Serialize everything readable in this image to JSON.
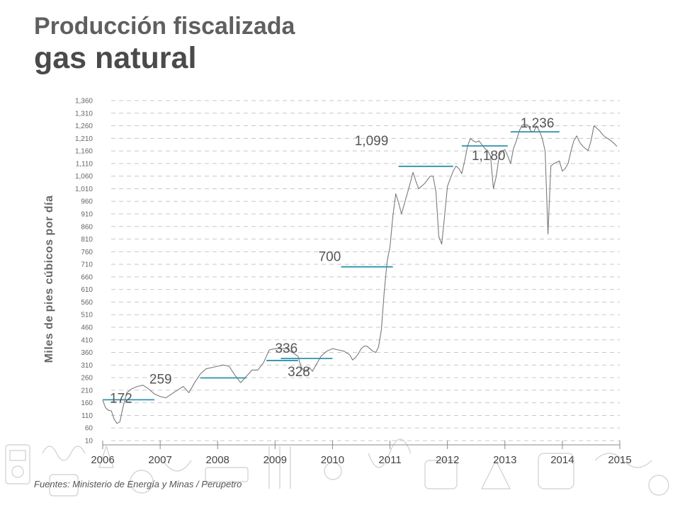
{
  "title_line1": "Producción fiscalizada",
  "title_line2": "gas natural",
  "source": "Fuentes: Ministerio de Energía y Minas / Perupetro",
  "chart_data": {
    "type": "line",
    "ylabel": "Miles de pies cúbicos por día",
    "xlim": [
      2006,
      2015
    ],
    "ylim": [
      10,
      1360
    ],
    "x_ticks": [
      "2006",
      "2007",
      "2008",
      "2009",
      "2010",
      "2011",
      "2012",
      "2013",
      "2014",
      "2015"
    ],
    "y_ticks": [
      "1,360",
      "1,310",
      "1,260",
      "1,210",
      "1,160",
      "1,110",
      "1,060",
      "1,010",
      "960",
      "910",
      "860",
      "810",
      "760",
      "710",
      "660",
      "610",
      "560",
      "510",
      "460",
      "410",
      "360",
      "310",
      "260",
      "210",
      "160",
      "110",
      "60",
      "10"
    ],
    "grid": true,
    "line_color": "#7a7a7a",
    "avg_color": "#2b93ad",
    "series": [
      {
        "points": [
          [
            2006.0,
            170
          ],
          [
            2006.05,
            140
          ],
          [
            2006.1,
            130
          ],
          [
            2006.15,
            128
          ],
          [
            2006.2,
            95
          ],
          [
            2006.25,
            78
          ],
          [
            2006.3,
            85
          ],
          [
            2006.35,
            140
          ],
          [
            2006.42,
            200
          ],
          [
            2006.5,
            215
          ],
          [
            2006.6,
            225
          ],
          [
            2006.7,
            230
          ],
          [
            2006.8,
            215
          ],
          [
            2006.9,
            195
          ],
          [
            2007.0,
            185
          ],
          [
            2007.1,
            180
          ],
          [
            2007.2,
            195
          ],
          [
            2007.3,
            210
          ],
          [
            2007.4,
            225
          ],
          [
            2007.5,
            200
          ],
          [
            2007.6,
            240
          ],
          [
            2007.7,
            275
          ],
          [
            2007.8,
            295
          ],
          [
            2007.9,
            300
          ],
          [
            2008.0,
            305
          ],
          [
            2008.1,
            310
          ],
          [
            2008.2,
            305
          ],
          [
            2008.3,
            270
          ],
          [
            2008.4,
            240
          ],
          [
            2008.5,
            265
          ],
          [
            2008.6,
            290
          ],
          [
            2008.7,
            290
          ],
          [
            2008.8,
            320
          ],
          [
            2008.9,
            370
          ],
          [
            2009.0,
            375
          ],
          [
            2009.1,
            375
          ],
          [
            2009.2,
            375
          ],
          [
            2009.3,
            360
          ],
          [
            2009.4,
            345
          ],
          [
            2009.45,
            305
          ],
          [
            2009.5,
            285
          ],
          [
            2009.55,
            290
          ],
          [
            2009.6,
            300
          ],
          [
            2009.65,
            285
          ],
          [
            2009.7,
            305
          ],
          [
            2009.8,
            345
          ],
          [
            2009.9,
            365
          ],
          [
            2010.0,
            375
          ],
          [
            2010.1,
            370
          ],
          [
            2010.2,
            365
          ],
          [
            2010.3,
            350
          ],
          [
            2010.35,
            330
          ],
          [
            2010.4,
            340
          ],
          [
            2010.45,
            355
          ],
          [
            2010.5,
            375
          ],
          [
            2010.55,
            385
          ],
          [
            2010.6,
            385
          ],
          [
            2010.65,
            375
          ],
          [
            2010.7,
            365
          ],
          [
            2010.75,
            360
          ],
          [
            2010.8,
            380
          ],
          [
            2010.85,
            450
          ],
          [
            2010.9,
            600
          ],
          [
            2010.95,
            720
          ],
          [
            2011.0,
            780
          ],
          [
            2011.05,
            900
          ],
          [
            2011.1,
            990
          ],
          [
            2011.15,
            955
          ],
          [
            2011.2,
            910
          ],
          [
            2011.25,
            950
          ],
          [
            2011.3,
            990
          ],
          [
            2011.35,
            1030
          ],
          [
            2011.4,
            1075
          ],
          [
            2011.45,
            1040
          ],
          [
            2011.5,
            1010
          ],
          [
            2011.55,
            1020
          ],
          [
            2011.6,
            1030
          ],
          [
            2011.65,
            1045
          ],
          [
            2011.7,
            1060
          ],
          [
            2011.75,
            1060
          ],
          [
            2011.8,
            1000
          ],
          [
            2011.85,
            820
          ],
          [
            2011.9,
            790
          ],
          [
            2011.95,
            900
          ],
          [
            2012.0,
            1020
          ],
          [
            2012.05,
            1050
          ],
          [
            2012.1,
            1080
          ],
          [
            2012.15,
            1100
          ],
          [
            2012.2,
            1090
          ],
          [
            2012.25,
            1070
          ],
          [
            2012.3,
            1120
          ],
          [
            2012.35,
            1180
          ],
          [
            2012.4,
            1210
          ],
          [
            2012.45,
            1200
          ],
          [
            2012.5,
            1195
          ],
          [
            2012.55,
            1200
          ],
          [
            2012.6,
            1185
          ],
          [
            2012.65,
            1170
          ],
          [
            2012.7,
            1160
          ],
          [
            2012.75,
            1140
          ],
          [
            2012.8,
            1010
          ],
          [
            2012.85,
            1060
          ],
          [
            2012.9,
            1140
          ],
          [
            2012.95,
            1160
          ],
          [
            2013.0,
            1165
          ],
          [
            2013.05,
            1140
          ],
          [
            2013.1,
            1110
          ],
          [
            2013.15,
            1170
          ],
          [
            2013.2,
            1200
          ],
          [
            2013.25,
            1240
          ],
          [
            2013.3,
            1262
          ],
          [
            2013.35,
            1265
          ],
          [
            2013.4,
            1263
          ],
          [
            2013.45,
            1240
          ],
          [
            2013.5,
            1235
          ],
          [
            2013.55,
            1260
          ],
          [
            2013.6,
            1240
          ],
          [
            2013.65,
            1210
          ],
          [
            2013.7,
            1160
          ],
          [
            2013.75,
            830
          ],
          [
            2013.8,
            1100
          ],
          [
            2013.85,
            1110
          ],
          [
            2013.9,
            1115
          ],
          [
            2013.95,
            1120
          ],
          [
            2014.0,
            1080
          ],
          [
            2014.05,
            1090
          ],
          [
            2014.1,
            1110
          ],
          [
            2014.15,
            1160
          ],
          [
            2014.2,
            1200
          ],
          [
            2014.25,
            1220
          ],
          [
            2014.3,
            1195
          ],
          [
            2014.35,
            1180
          ],
          [
            2014.4,
            1170
          ],
          [
            2014.45,
            1162
          ],
          [
            2014.5,
            1200
          ],
          [
            2014.55,
            1260
          ],
          [
            2014.6,
            1250
          ],
          [
            2014.65,
            1240
          ],
          [
            2014.7,
            1225
          ],
          [
            2014.75,
            1215
          ],
          [
            2014.8,
            1208
          ],
          [
            2014.85,
            1200
          ],
          [
            2014.9,
            1190
          ],
          [
            2014.95,
            1178
          ]
        ]
      }
    ],
    "annual_averages": [
      {
        "label": "172",
        "value": 172,
        "x_range": [
          2006.0,
          2006.9
        ]
      },
      {
        "label": "259",
        "value": 259,
        "x_range": [
          2007.7,
          2008.5
        ]
      },
      {
        "label": "328",
        "value": 328,
        "x_range": [
          2008.85,
          2009.4
        ]
      },
      {
        "label": "336",
        "value": 336,
        "x_range": [
          2009.1,
          2010.0
        ]
      },
      {
        "label": "700",
        "value": 700,
        "x_range": [
          2010.15,
          2011.05
        ]
      },
      {
        "label": "1,099",
        "value": 1099,
        "x_range": [
          2011.15,
          2012.1
        ]
      },
      {
        "label": "1,180",
        "value": 1180,
        "x_range": [
          2012.25,
          2013.05
        ]
      },
      {
        "label": "1,236",
        "value": 1236,
        "x_range": [
          2013.1,
          2013.95
        ]
      }
    ]
  }
}
